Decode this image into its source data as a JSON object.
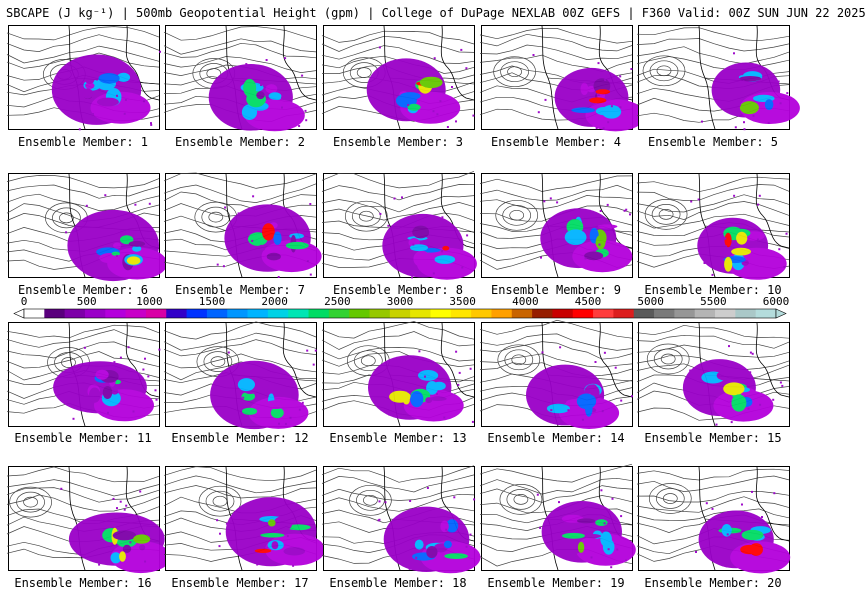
{
  "header": {
    "title": "SBCAPE (J kg⁻¹) | 500mb Geopotential Height (gpm) | College of DuPage NEXLAB 00Z GEFS | F360 Valid: 00Z SUN JUN 22 2025"
  },
  "members": [
    {
      "label": "Ensemble Member: 1"
    },
    {
      "label": "Ensemble Member: 2"
    },
    {
      "label": "Ensemble Member: 3"
    },
    {
      "label": "Ensemble Member: 4"
    },
    {
      "label": "Ensemble Member: 5"
    },
    {
      "label": "Ensemble Member: 6"
    },
    {
      "label": "Ensemble Member: 7"
    },
    {
      "label": "Ensemble Member: 8"
    },
    {
      "label": "Ensemble Member: 9"
    },
    {
      "label": "Ensemble Member: 10"
    },
    {
      "label": "Ensemble Member: 11"
    },
    {
      "label": "Ensemble Member: 12"
    },
    {
      "label": "Ensemble Member: 13"
    },
    {
      "label": "Ensemble Member: 14"
    },
    {
      "label": "Ensemble Member: 15"
    },
    {
      "label": "Ensemble Member: 16"
    },
    {
      "label": "Ensemble Member: 17"
    },
    {
      "label": "Ensemble Member: 18"
    },
    {
      "label": "Ensemble Member: 19"
    },
    {
      "label": "Ensemble Member: 20"
    }
  ],
  "colorbar": {
    "ticks": [
      "0",
      "500",
      "1000",
      "1500",
      "2000",
      "2500",
      "3000",
      "3500",
      "4000",
      "4500",
      "5000",
      "5500",
      "6000"
    ],
    "colors": [
      "#ffffff",
      "#5a007d",
      "#7d00a8",
      "#9a00c8",
      "#b400dc",
      "#c800c8",
      "#d900a6",
      "#3200c8",
      "#0032ff",
      "#0064ff",
      "#0096ff",
      "#00b4ff",
      "#00d2e6",
      "#00e6b4",
      "#00dc64",
      "#32d232",
      "#64c800",
      "#96c800",
      "#c8d200",
      "#e6e600",
      "#ffff00",
      "#ffe600",
      "#ffc800",
      "#ffa000",
      "#c86400",
      "#961e00",
      "#c80000",
      "#ff0000",
      "#ff3c3c",
      "#dc1e1e",
      "#5a5a5a",
      "#7a7a7a",
      "#969696",
      "#b4b4b4",
      "#cdcdcd",
      "#aac8c8",
      "#b4dcdc"
    ]
  }
}
